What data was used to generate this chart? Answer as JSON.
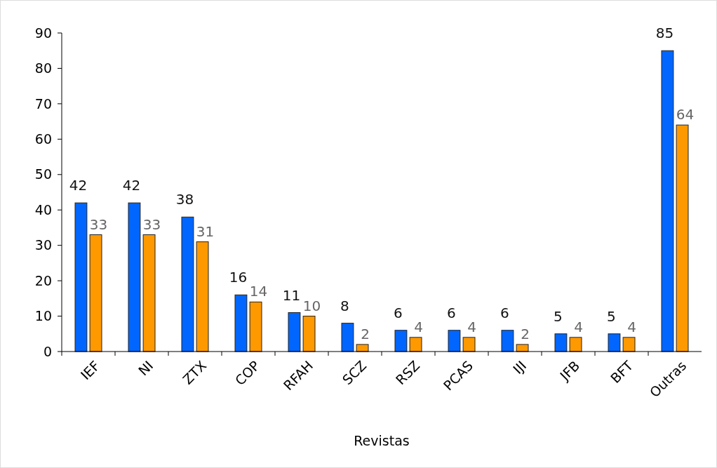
{
  "chart_data": {
    "type": "bar",
    "xlabel": "Revistas",
    "categories": [
      "IEF",
      "NI",
      "ZTX",
      "COP",
      "RFAH",
      "SCZ",
      "RSZ",
      "PCAS",
      "IJI",
      "JFB",
      "BFT",
      "Outras"
    ],
    "series": [
      {
        "color": "#0066ff",
        "values": [
          42,
          42,
          38,
          16,
          11,
          8,
          6,
          6,
          6,
          5,
          5,
          85
        ]
      },
      {
        "color": "#ff9900",
        "values": [
          33,
          33,
          31,
          14,
          10,
          2,
          4,
          4,
          2,
          4,
          4,
          64
        ]
      }
    ],
    "ylim": [
      0,
      90
    ],
    "yticks": [
      0,
      10,
      20,
      30,
      40,
      50,
      60,
      70,
      80,
      90
    ],
    "data_labels": true
  }
}
